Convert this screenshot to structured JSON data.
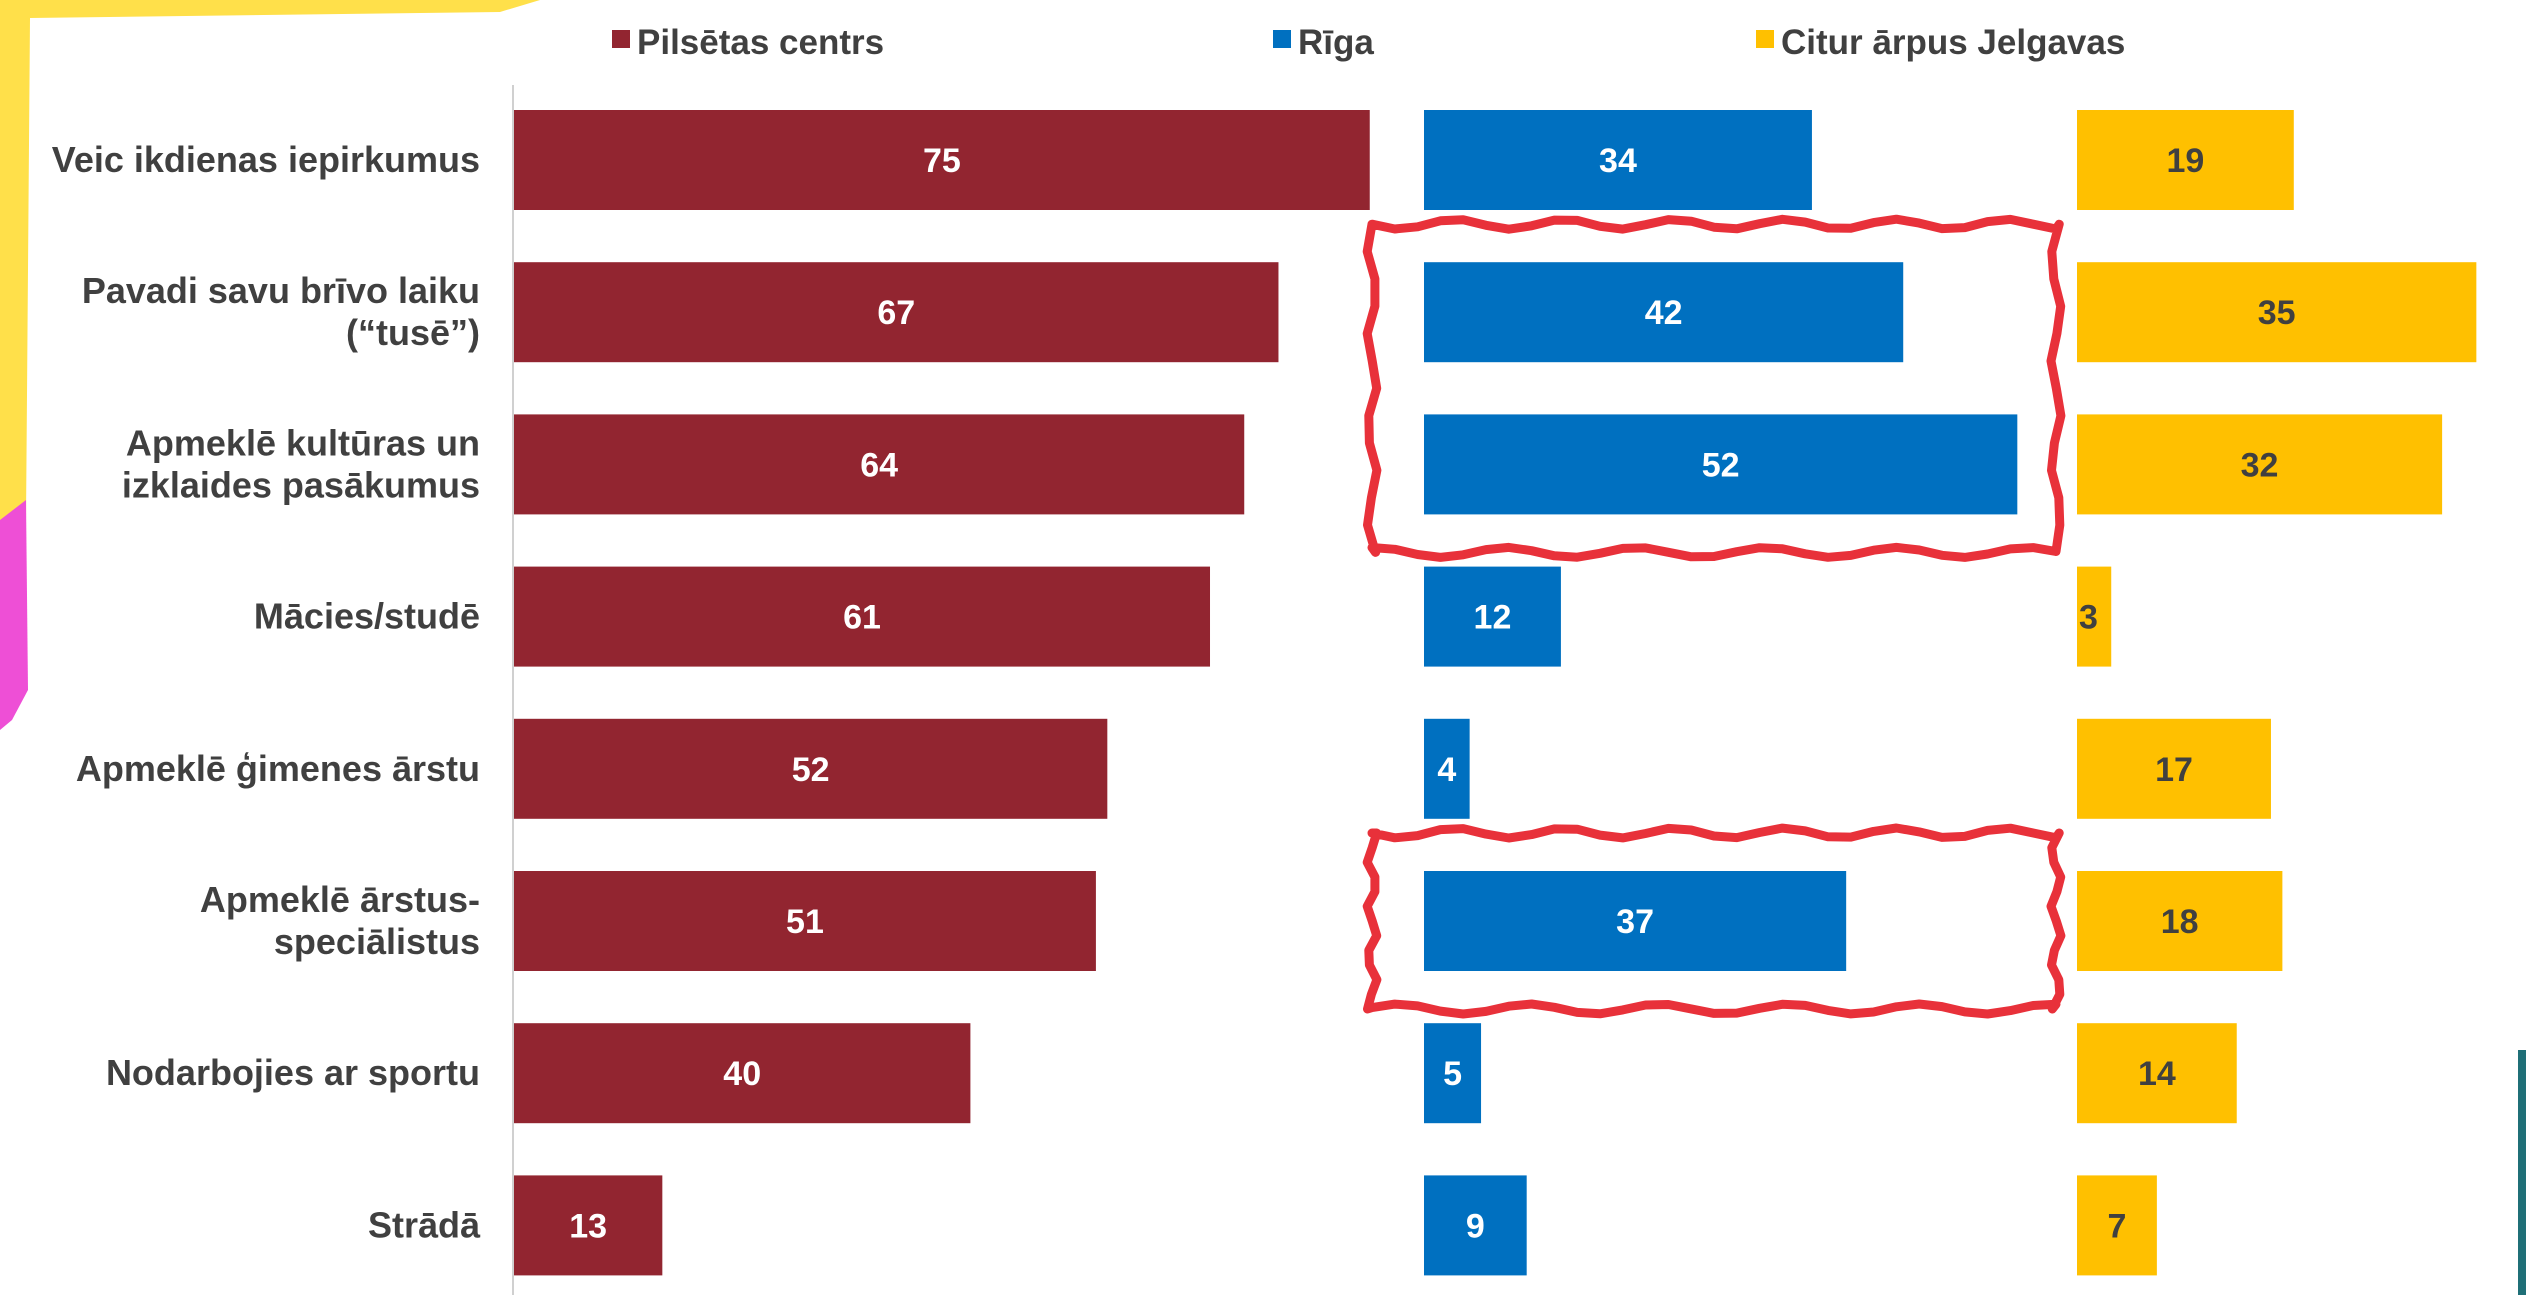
{
  "chart_data": {
    "type": "bar",
    "orientation": "horizontal",
    "layout": "side-by-side panels",
    "categories": [
      [
        "Veic ikdienas iepirkumus"
      ],
      [
        "Pavadi savu brīvo laiku",
        "(“tusē”)"
      ],
      [
        "Apmeklē kultūras un",
        "izklaides pasākumus"
      ],
      [
        "Mācies/studē"
      ],
      [
        "Apmeklē ģimenes ārstu"
      ],
      [
        "Apmeklē ārstus-",
        "speciālistus"
      ],
      [
        "Nodarbojies ar sportu"
      ],
      [
        "Strādā"
      ]
    ],
    "series": [
      {
        "name": "Pilsētas centrs",
        "color": "#922530",
        "label_color": "#ffffff",
        "values": [
          75,
          67,
          64,
          61,
          52,
          51,
          40,
          13
        ]
      },
      {
        "name": "Rīga",
        "color": "#0070c0",
        "label_color": "#ffffff",
        "values": [
          34,
          42,
          52,
          12,
          4,
          37,
          5,
          9
        ]
      },
      {
        "name": "Citur ārpus Jelgavas",
        "color": "#ffc000",
        "label_color": "#404040",
        "values": [
          19,
          35,
          32,
          3,
          17,
          18,
          14,
          7
        ]
      }
    ],
    "legend_position": "top",
    "grid": false,
    "highlights": [
      {
        "series": "Rīga",
        "categories": [
          1,
          2
        ],
        "color": "#e8313a"
      },
      {
        "series": "Rīga",
        "categories": [
          5
        ],
        "color": "#e8313a"
      }
    ]
  }
}
